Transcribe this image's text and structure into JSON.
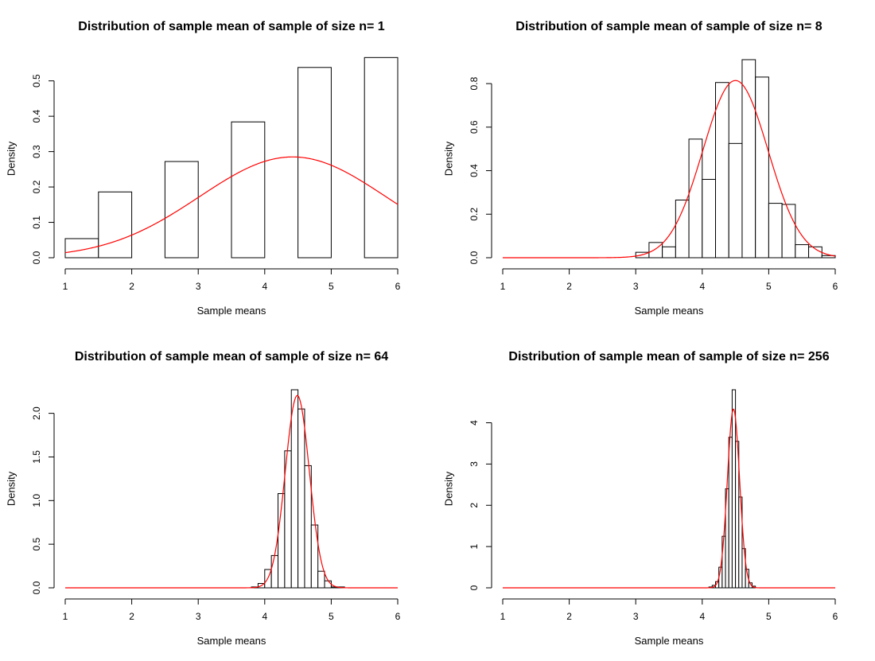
{
  "chart_data": [
    {
      "type": "bar",
      "subtype": "histogram-with-density-curve",
      "title": "Distribution of sample mean of sample of size n= 1",
      "xlabel": "Sample means",
      "ylabel": "Density",
      "xlim": [
        1,
        6
      ],
      "ylim": [
        0,
        0.56
      ],
      "x_ticks": [
        "1",
        "2",
        "3",
        "4",
        "5",
        "6"
      ],
      "y_ticks": [
        "0.0",
        "0.1",
        "0.2",
        "0.3",
        "0.4",
        "0.5"
      ],
      "y_tick_values": [
        0,
        0.1,
        0.2,
        0.3,
        0.4,
        0.5
      ],
      "bins": [
        {
          "x0": 1.0,
          "x1": 1.5,
          "density": 0.054
        },
        {
          "x0": 1.5,
          "x1": 2.0,
          "density": 0.186
        },
        {
          "x0": 2.5,
          "x1": 3.0,
          "density": 0.272
        },
        {
          "x0": 3.5,
          "x1": 4.0,
          "density": 0.384
        },
        {
          "x0": 4.5,
          "x1": 5.0,
          "density": 0.538
        },
        {
          "x0": 5.5,
          "x1": 6.0,
          "density": 0.566
        }
      ],
      "curve": {
        "kind": "normal",
        "mean": 4.42,
        "sd": 1.4,
        "color": "#ff0000"
      },
      "bar_color": "#ffffff",
      "bar_stroke": "#000000"
    },
    {
      "type": "bar",
      "subtype": "histogram-with-density-curve",
      "title": "Distribution of sample mean of sample of size n= 8",
      "xlabel": "Sample means",
      "ylabel": "Density",
      "xlim": [
        1,
        6
      ],
      "ylim": [
        0,
        0.91
      ],
      "x_ticks": [
        "1",
        "2",
        "3",
        "4",
        "5",
        "6"
      ],
      "y_ticks": [
        "0.0",
        "0.2",
        "0.4",
        "0.6",
        "0.8"
      ],
      "y_tick_values": [
        0,
        0.2,
        0.4,
        0.6,
        0.8
      ],
      "bins": [
        {
          "x0": 3.0,
          "x1": 3.2,
          "density": 0.025
        },
        {
          "x0": 3.2,
          "x1": 3.4,
          "density": 0.07
        },
        {
          "x0": 3.4,
          "x1": 3.6,
          "density": 0.05
        },
        {
          "x0": 3.6,
          "x1": 3.8,
          "density": 0.265
        },
        {
          "x0": 3.8,
          "x1": 4.0,
          "density": 0.545
        },
        {
          "x0": 4.0,
          "x1": 4.2,
          "density": 0.36
        },
        {
          "x0": 4.2,
          "x1": 4.4,
          "density": 0.805
        },
        {
          "x0": 4.4,
          "x1": 4.6,
          "density": 0.525
        },
        {
          "x0": 4.6,
          "x1": 4.8,
          "density": 0.91
        },
        {
          "x0": 4.8,
          "x1": 5.0,
          "density": 0.83
        },
        {
          "x0": 5.0,
          "x1": 5.2,
          "density": 0.25
        },
        {
          "x0": 5.2,
          "x1": 5.4,
          "density": 0.245
        },
        {
          "x0": 5.4,
          "x1": 5.6,
          "density": 0.06
        },
        {
          "x0": 5.6,
          "x1": 5.8,
          "density": 0.05
        },
        {
          "x0": 5.8,
          "x1": 6.0,
          "density": 0.01
        }
      ],
      "curve": {
        "kind": "normal",
        "mean": 4.5,
        "sd": 0.49,
        "color": "#ff0000"
      },
      "bar_color": "#ffffff",
      "bar_stroke": "#000000"
    },
    {
      "type": "bar",
      "subtype": "histogram-with-density-curve",
      "title": "Distribution of sample mean of sample of size n= 64",
      "xlabel": "Sample means",
      "ylabel": "Density",
      "xlim": [
        1,
        6
      ],
      "ylim": [
        0,
        2.27
      ],
      "x_ticks": [
        "1",
        "2",
        "3",
        "4",
        "5",
        "6"
      ],
      "y_ticks": [
        "0.0",
        "0.5",
        "1.0",
        "1.5",
        "2.0"
      ],
      "y_tick_values": [
        0,
        0.5,
        1.0,
        1.5,
        2.0
      ],
      "bins": [
        {
          "x0": 3.8,
          "x1": 3.9,
          "density": 0.01
        },
        {
          "x0": 3.9,
          "x1": 4.0,
          "density": 0.05
        },
        {
          "x0": 4.0,
          "x1": 4.1,
          "density": 0.21
        },
        {
          "x0": 4.1,
          "x1": 4.2,
          "density": 0.37
        },
        {
          "x0": 4.2,
          "x1": 4.3,
          "density": 1.08
        },
        {
          "x0": 4.3,
          "x1": 4.4,
          "density": 1.57
        },
        {
          "x0": 4.4,
          "x1": 4.5,
          "density": 2.27
        },
        {
          "x0": 4.5,
          "x1": 4.6,
          "density": 2.05
        },
        {
          "x0": 4.6,
          "x1": 4.7,
          "density": 1.4
        },
        {
          "x0": 4.7,
          "x1": 4.8,
          "density": 0.72
        },
        {
          "x0": 4.8,
          "x1": 4.9,
          "density": 0.19
        },
        {
          "x0": 4.9,
          "x1": 5.0,
          "density": 0.08
        },
        {
          "x0": 5.0,
          "x1": 5.1,
          "density": 0.01
        },
        {
          "x0": 5.1,
          "x1": 5.2,
          "density": 0.01
        }
      ],
      "curve": {
        "kind": "normal",
        "mean": 4.49,
        "sd": 0.181,
        "color": "#ff0000"
      },
      "bar_color": "#ffffff",
      "bar_stroke": "#000000"
    },
    {
      "type": "bar",
      "subtype": "histogram-with-density-curve",
      "title": "Distribution of sample mean of sample of size n= 256",
      "xlabel": "Sample means",
      "ylabel": "Density",
      "xlim": [
        1,
        6
      ],
      "ylim": [
        0,
        4.8
      ],
      "x_ticks": [
        "1",
        "2",
        "3",
        "4",
        "5",
        "6"
      ],
      "y_ticks": [
        "0",
        "1",
        "2",
        "3",
        "4"
      ],
      "y_tick_values": [
        0,
        1,
        2,
        3,
        4
      ],
      "bins": [
        {
          "x0": 4.1,
          "x1": 4.15,
          "density": 0.02
        },
        {
          "x0": 4.15,
          "x1": 4.2,
          "density": 0.06
        },
        {
          "x0": 4.2,
          "x1": 4.25,
          "density": 0.15
        },
        {
          "x0": 4.25,
          "x1": 4.3,
          "density": 0.5
        },
        {
          "x0": 4.3,
          "x1": 4.35,
          "density": 1.25
        },
        {
          "x0": 4.35,
          "x1": 4.4,
          "density": 2.4
        },
        {
          "x0": 4.4,
          "x1": 4.45,
          "density": 3.65
        },
        {
          "x0": 4.45,
          "x1": 4.5,
          "density": 4.8
        },
        {
          "x0": 4.5,
          "x1": 4.55,
          "density": 3.55
        },
        {
          "x0": 4.55,
          "x1": 4.6,
          "density": 2.2
        },
        {
          "x0": 4.6,
          "x1": 4.65,
          "density": 0.95
        },
        {
          "x0": 4.65,
          "x1": 4.7,
          "density": 0.45
        },
        {
          "x0": 4.7,
          "x1": 4.75,
          "density": 0.12
        },
        {
          "x0": 4.75,
          "x1": 4.8,
          "density": 0.04
        }
      ],
      "curve": {
        "kind": "normal",
        "mean": 4.47,
        "sd": 0.092,
        "color": "#ff0000"
      },
      "bar_color": "#ffffff",
      "bar_stroke": "#000000"
    }
  ]
}
